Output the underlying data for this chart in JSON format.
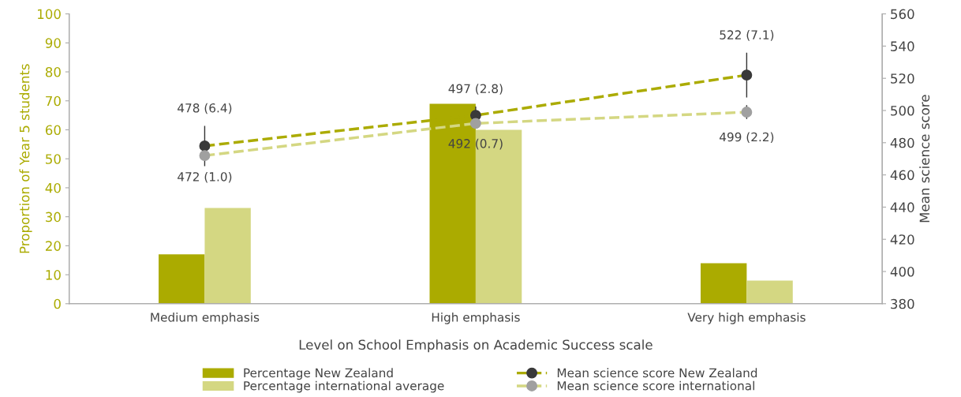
{
  "chart_data": {
    "type": "bar",
    "xlabel": "Level on School Emphasis on Academic Success scale",
    "ylabel": "Proportion of Year 5 students",
    "y2label": "Mean science score",
    "categories": [
      "Medium emphasis",
      "High emphasis",
      "Very high emphasis"
    ],
    "series": [
      {
        "name": "Percentage New Zealand",
        "color": "#abab00",
        "values": [
          17,
          69,
          14
        ]
      },
      {
        "name": "Percentage international average",
        "color": "#d4d782",
        "values": [
          33,
          60,
          8
        ]
      },
      {
        "name": "Mean science score New Zealand",
        "type": "line",
        "axis": "y2",
        "color": "#abab00",
        "values": [
          478,
          497,
          522
        ],
        "errors": [
          12.5,
          5.5,
          13.9
        ],
        "value_labels": [
          "478 (6.4)",
          "497 (2.8)",
          "522 (7.1)"
        ]
      },
      {
        "name": "Mean science score international",
        "type": "line",
        "axis": "y2",
        "color": "#d4d782",
        "values": [
          472,
          492,
          499
        ],
        "errors": [
          2.0,
          1.4,
          4.3
        ],
        "value_labels": [
          "472 (1.0)",
          "492 (0.7)",
          "499 (2.2)"
        ]
      }
    ],
    "ylim": [
      0,
      100
    ],
    "yticks": [
      0,
      10,
      20,
      30,
      40,
      50,
      60,
      70,
      80,
      90,
      100
    ],
    "y2lim": [
      380,
      560
    ],
    "y2ticks": [
      380,
      400,
      420,
      440,
      460,
      480,
      500,
      520,
      540,
      560
    ],
    "marker": "circle",
    "line_style": "dashed",
    "legend": "bottom",
    "grid": false
  }
}
